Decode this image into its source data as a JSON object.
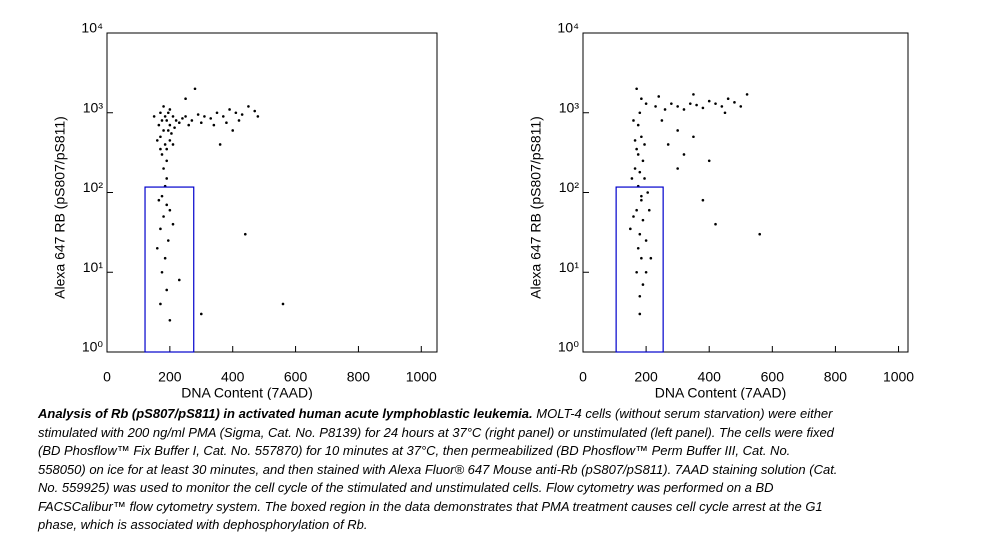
{
  "chart_data": [
    {
      "type": "scatter",
      "x_label": "DNA Content (7AAD)",
      "y_label": "Alexa 647 RB (pS807/pS811)",
      "xlim": [
        0,
        1050
      ],
      "ylim": [
        1,
        10000
      ],
      "log_y": true,
      "color": "#000000",
      "xticks": [
        0,
        200,
        400,
        600,
        800,
        1000
      ],
      "yticks": [
        {
          "value": 1,
          "label": "10⁰"
        },
        {
          "value": 10,
          "label": "10¹"
        },
        {
          "value": 100,
          "label": "10²"
        },
        {
          "value": 1000,
          "label": "10³"
        },
        {
          "value": 10000,
          "label": "10⁴"
        }
      ],
      "gate": {
        "x": [
          121,
          276
        ],
        "y": [
          1,
          117
        ],
        "color": "#0000cc"
      },
      "x": [
        190,
        180,
        200,
        170,
        210,
        185,
        195,
        175,
        205,
        190,
        165,
        215,
        180,
        200,
        170,
        220,
        185,
        195,
        160,
        210,
        175,
        190,
        230,
        200,
        180,
        170,
        240,
        250,
        270,
        290,
        310,
        330,
        350,
        370,
        390,
        410,
        430,
        450,
        470,
        480,
        260,
        300,
        340,
        380,
        420,
        190,
        185,
        175,
        190,
        180,
        170,
        195,
        185,
        175,
        190,
        170,
        200,
        160,
        210,
        230,
        300,
        560,
        440,
        150,
        250,
        280,
        360,
        400,
        200,
        165
      ],
      "y": [
        800,
        600,
        700,
        500,
        900,
        400,
        1000,
        300,
        550,
        250,
        700,
        650,
        1200,
        450,
        350,
        800,
        900,
        600,
        450,
        400,
        800,
        350,
        750,
        1100,
        200,
        1000,
        850,
        900,
        800,
        950,
        900,
        850,
        1000,
        900,
        1100,
        1000,
        950,
        1200,
        1050,
        900,
        700,
        750,
        700,
        750,
        800,
        150,
        120,
        90,
        70,
        50,
        35,
        25,
        15,
        10,
        6,
        4,
        2.5,
        20,
        40,
        8,
        3,
        4,
        30,
        900,
        1500,
        2000,
        400,
        600,
        60,
        80
      ]
    },
    {
      "type": "scatter",
      "x_label": "DNA Content (7AAD)",
      "y_label": "Alexa 647 RB (pS807/pS811)",
      "xlim": [
        0,
        1030
      ],
      "ylim": [
        1,
        10000
      ],
      "log_y": true,
      "color": "#000000",
      "xticks": [
        0,
        200,
        400,
        600,
        800,
        1000
      ],
      "yticks": [
        {
          "value": 1,
          "label": "10⁰"
        },
        {
          "value": 10,
          "label": "10¹"
        },
        {
          "value": 100,
          "label": "10²"
        },
        {
          "value": 1000,
          "label": "10³"
        },
        {
          "value": 10000,
          "label": "10⁴"
        }
      ],
      "gate": {
        "x": [
          105,
          254
        ],
        "y": [
          1,
          117
        ],
        "color": "#0000cc"
      },
      "x": [
        180,
        175,
        185,
        170,
        190,
        180,
        175,
        185,
        170,
        190,
        180,
        175,
        185,
        170,
        190,
        180,
        165,
        195,
        160,
        200,
        185,
        170,
        155,
        205,
        160,
        200,
        150,
        210,
        175,
        185,
        165,
        195,
        180,
        230,
        260,
        280,
        300,
        320,
        340,
        360,
        380,
        400,
        420,
        440,
        460,
        480,
        500,
        520,
        250,
        300,
        350,
        270,
        320,
        400,
        380,
        420,
        300,
        560,
        240,
        350,
        450,
        200,
        215
      ],
      "y": [
        1000,
        700,
        500,
        350,
        250,
        180,
        120,
        90,
        60,
        45,
        30,
        20,
        15,
        10,
        7,
        5,
        200,
        400,
        800,
        1300,
        1500,
        2000,
        150,
        100,
        50,
        25,
        35,
        60,
        300,
        80,
        450,
        150,
        3,
        1200,
        1100,
        1300,
        1200,
        1100,
        1300,
        1250,
        1150,
        1400,
        1300,
        1200,
        1500,
        1350,
        1200,
        1700,
        800,
        600,
        500,
        400,
        300,
        250,
        80,
        40,
        200,
        30,
        1600,
        1700,
        1000,
        10,
        15
      ]
    }
  ],
  "caption": {
    "title": "Analysis of Rb (pS807/pS811) in activated human acute lymphoblastic leukemia.",
    "text": "MOLT-4 cells (without serum starvation) were either stimulated with 200 ng/ml PMA (Sigma, Cat. No. P8139) for 24 hours at 37°C (right panel) or unstimulated (left panel). The cells were fixed (BD Phosflow™ Fix Buffer I, Cat. No. 557870) for 10 minutes at 37°C, then permeabilized (BD Phosflow™ Perm Buffer III, Cat. No. 558050) on ice for at least 30 minutes, and then stained with Alexa Fluor® 647 Mouse anti-Rb (pS807/pS811). 7AAD staining solution (Cat. No. 559925) was used to monitor the cell cycle of the stimulated and unstimulated cells. Flow cytometry was performed on a BD FACSCalibur™ flow cytometry system. The boxed region in the data demonstrates that PMA treatment causes cell cycle arrest at the G1 phase, which is associated with dephosphorylation of Rb."
  }
}
